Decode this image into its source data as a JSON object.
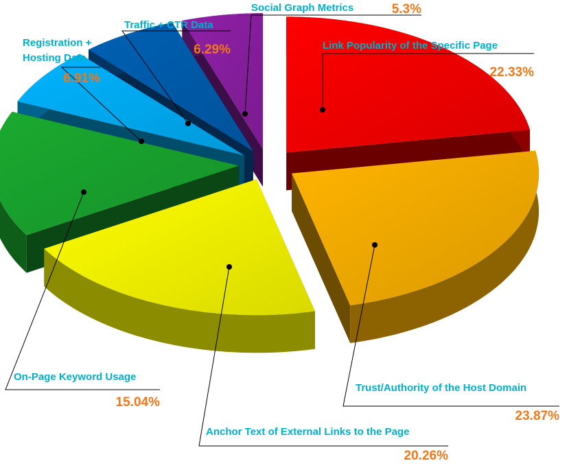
{
  "chart_data": {
    "type": "pie",
    "title": "",
    "slices": [
      {
        "label": "Link Popularity of the Specific Page",
        "value": 22.33,
        "value_label": "22.33%",
        "color": "#ff0000"
      },
      {
        "label": "Trust/Authority of the Host Domain",
        "value": 23.87,
        "value_label": "23.87%",
        "color": "#ffb400"
      },
      {
        "label": "Anchor Text of External Links to the Page",
        "value": 20.26,
        "value_label": "20.26%",
        "color": "#ffff00"
      },
      {
        "label": "On-Page Keyword Usage",
        "value": 15.04,
        "value_label": "15.04%",
        "color": "#1aaa30"
      },
      {
        "label": "Registration + Hosting Data",
        "value": 6.91,
        "value_label": "6.91%",
        "color": "#00b4ff"
      },
      {
        "label": "Traffic + CTR Data",
        "value": 6.29,
        "value_label": "6.29%",
        "color": "#0060b4"
      },
      {
        "label": "Social Graph Metrics",
        "value": 5.3,
        "value_label": "5.3%",
        "color": "#9020a8"
      }
    ],
    "legend": "none",
    "style": "3d-exploded"
  }
}
